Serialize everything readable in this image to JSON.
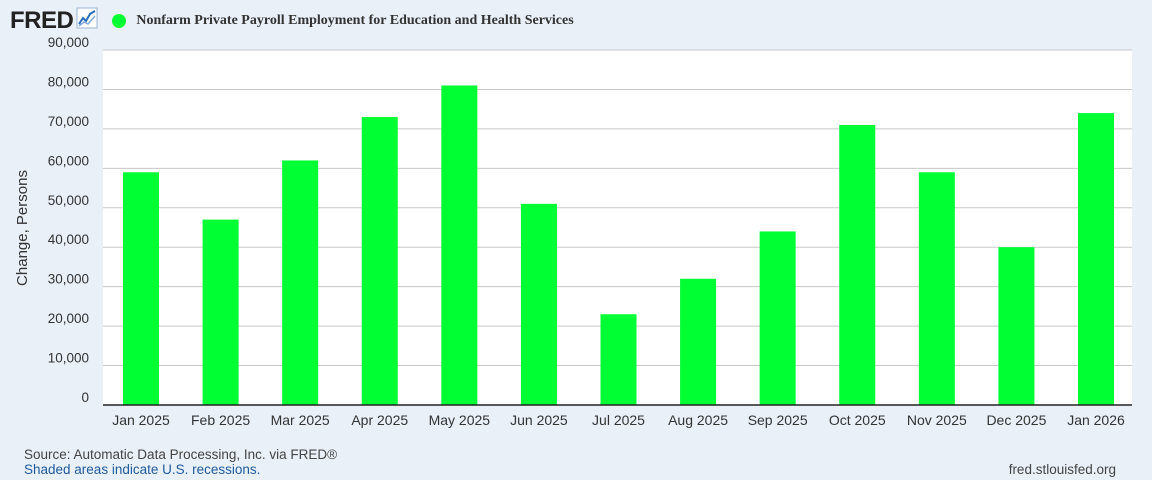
{
  "header": {
    "logo_text": "FRED",
    "logo_icon": "line-graph-icon",
    "series_title": "Nonfarm Private Payroll Employment for Education and Health Services",
    "series_color": "#00ff33"
  },
  "chart_data": {
    "type": "bar",
    "title": "Nonfarm Private Payroll Employment for Education and Health Services",
    "xlabel": "",
    "ylabel": "Change, Persons",
    "categories": [
      "Jan 2025",
      "Feb 2025",
      "Mar 2025",
      "Apr 2025",
      "May 2025",
      "Jun 2025",
      "Jul 2025",
      "Aug 2025",
      "Sep 2025",
      "Oct 2025",
      "Nov 2025",
      "Dec 2025",
      "Jan 2026"
    ],
    "series": [
      {
        "values": [
          59000,
          47000,
          62000,
          73000,
          81000,
          51000,
          23000,
          32000,
          44000,
          71000,
          59000,
          40000,
          74000
        ]
      }
    ],
    "ylim": [
      0,
      90000
    ],
    "yticks": [
      "0",
      "10,000",
      "20,000",
      "30,000",
      "40,000",
      "50,000",
      "60,000",
      "70,000",
      "80,000",
      "90,000"
    ],
    "grid": true,
    "bar_color": "#00ff33"
  },
  "footer": {
    "source": "Source: Automatic Data Processing, Inc. via FRED®",
    "shaded": "Shaded areas indicate U.S. recessions.",
    "url": "fred.stlouisfed.org"
  }
}
